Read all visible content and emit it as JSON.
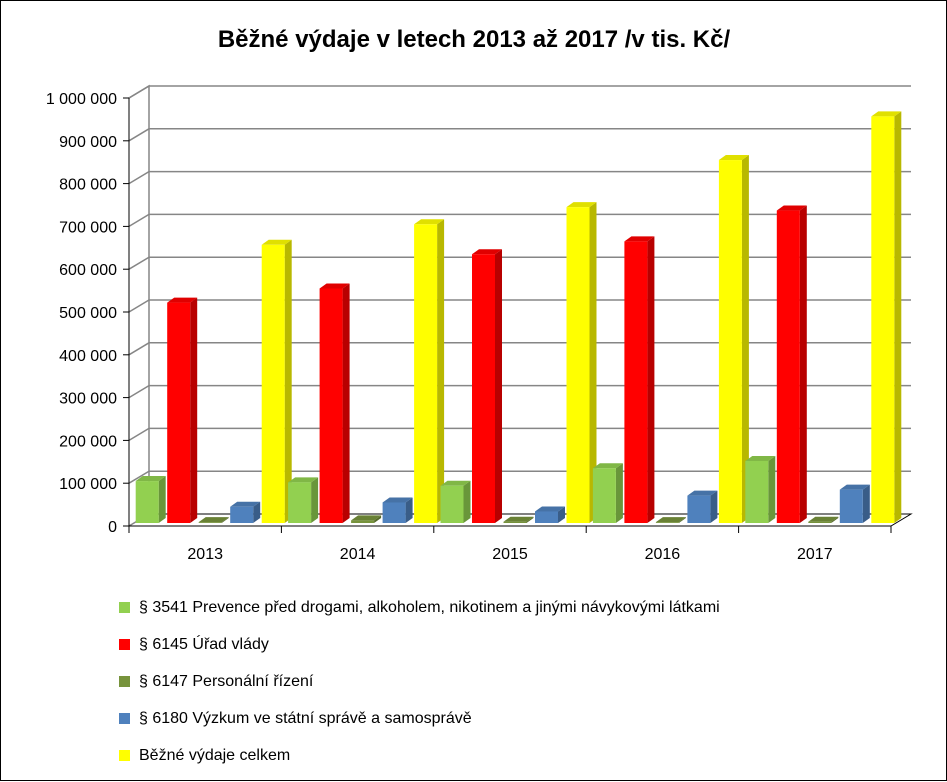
{
  "chart_data": {
    "type": "bar",
    "title": "Běžné výdaje v letech 2013 až 2017 /v tis. Kč/",
    "categories": [
      "2013",
      "2014",
      "2015",
      "2016",
      "2017"
    ],
    "ylim": [
      0,
      1000000
    ],
    "yticks": [
      "0",
      "100 000",
      "200 000",
      "300 000",
      "400 000",
      "500 000",
      "600 000",
      "700 000",
      "800 000",
      "900 000",
      "1 000 000"
    ],
    "grid": true,
    "legend_position": "bottom",
    "series": [
      {
        "name": "§ 3541 Prevence před drogami, alkoholem, nikotinem a jinými návykovými látkami",
        "color": "#92D050",
        "values": [
          98000,
          95000,
          87000,
          128000,
          145000
        ]
      },
      {
        "name": "§ 6145 Úřad vlády",
        "color": "#FF0000",
        "values": [
          515000,
          548000,
          628000,
          658000,
          730000
        ]
      },
      {
        "name": "§ 6147 Personální řízení",
        "color": "#77933C",
        "values": [
          2000,
          6000,
          3000,
          2000,
          3000
        ]
      },
      {
        "name": "§ 6180 Výzkum ve státní správě a samosprávě",
        "color": "#4F81BD",
        "values": [
          38000,
          48000,
          27000,
          64000,
          78000
        ]
      },
      {
        "name": "Běžné výdaje celkem",
        "color": "#FFFF00",
        "values": [
          650000,
          698000,
          738000,
          848000,
          950000
        ]
      }
    ]
  }
}
